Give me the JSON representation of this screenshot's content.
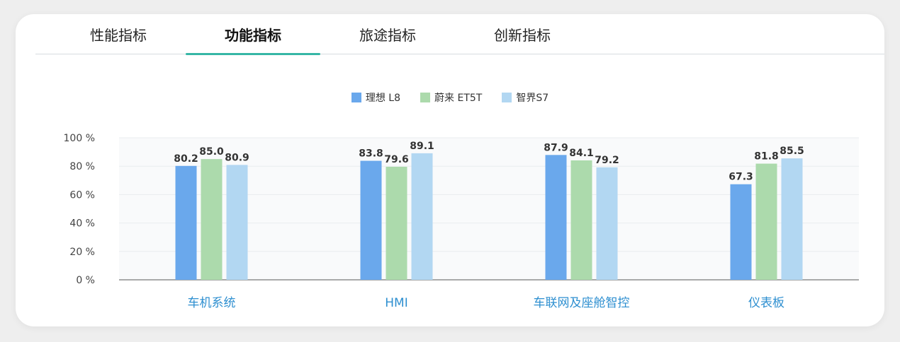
{
  "tabs": [
    {
      "label": "性能指标",
      "active": false
    },
    {
      "label": "功能指标",
      "active": true
    },
    {
      "label": "旅途指标",
      "active": false
    },
    {
      "label": "创新指标",
      "active": false
    }
  ],
  "colors": {
    "accent": "#36b6a6",
    "grid": "#e9ecef",
    "plot_bg": "#f9fafb",
    "category_text": "#2e8fd0"
  },
  "chart_data": {
    "type": "bar",
    "categories": [
      "车机系统",
      "HMI",
      "车联网及座舱智控",
      "仪表板"
    ],
    "series": [
      {
        "name": "理想  L8",
        "color": "#6aa8ec",
        "values": [
          80.2,
          83.8,
          87.9,
          67.3
        ]
      },
      {
        "name": "蔚来 ET5T",
        "color": "#acdaac",
        "values": [
          85.0,
          79.6,
          84.1,
          81.8
        ]
      },
      {
        "name": "智界S7",
        "color": "#b2d7f2",
        "values": [
          80.9,
          89.1,
          79.2,
          85.5
        ]
      }
    ],
    "value_labels": [
      [
        "80.2",
        "83.8",
        "87.9",
        "67.3"
      ],
      [
        "85.0",
        "79.6",
        "84.1",
        "81.8"
      ],
      [
        "80.9",
        "89.1",
        "79.2",
        "85.5"
      ]
    ],
    "ylim": [
      0,
      100
    ],
    "yticks": [
      0,
      20,
      40,
      60,
      80,
      100
    ],
    "ytick_labels": [
      "0 %",
      "20 %",
      "40 %",
      "60 %",
      "80 %",
      "100 %"
    ],
    "grid": true,
    "legend_position": "top-center"
  }
}
